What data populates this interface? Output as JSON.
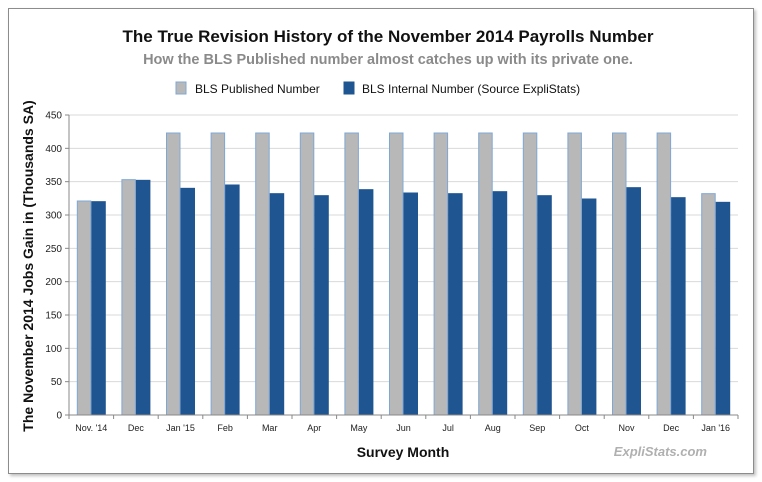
{
  "chart_data": {
    "type": "bar",
    "title": "The True Revision History of the November 2014 Payrolls Number",
    "subtitle": "How the BLS Published number almost catches up with its private one.",
    "xlabel": "Survey Month",
    "ylabel": "The November 2014 Jobs Gain in (Thousands SA)",
    "ylim": [
      0,
      450
    ],
    "yticks": [
      0,
      50,
      100,
      150,
      200,
      250,
      300,
      350,
      400,
      450
    ],
    "grid": true,
    "legend_position": "top",
    "watermark": "ExpliStats.com",
    "categories": [
      "Nov. '14",
      "Dec",
      "Jan '15",
      "Feb",
      "Mar",
      "Apr",
      "May",
      "Jun",
      "Jul",
      "Aug",
      "Sep",
      "Oct",
      "Nov",
      "Dec",
      "Jan '16"
    ],
    "series": [
      {
        "name": "BLS Published Number",
        "color": "#b8b8b8",
        "edge_color": "#7fa7d6",
        "values": [
          321,
          353,
          423,
          423,
          423,
          423,
          423,
          423,
          423,
          423,
          423,
          423,
          423,
          423,
          332
        ]
      },
      {
        "name": "BLS Internal Number (Source  ExpliStats)",
        "color": "#1f5591",
        "edge_color": "#1f5591",
        "values": [
          320,
          352,
          340,
          345,
          332,
          329,
          338,
          333,
          332,
          335,
          329,
          324,
          341,
          326,
          319
        ]
      }
    ]
  }
}
